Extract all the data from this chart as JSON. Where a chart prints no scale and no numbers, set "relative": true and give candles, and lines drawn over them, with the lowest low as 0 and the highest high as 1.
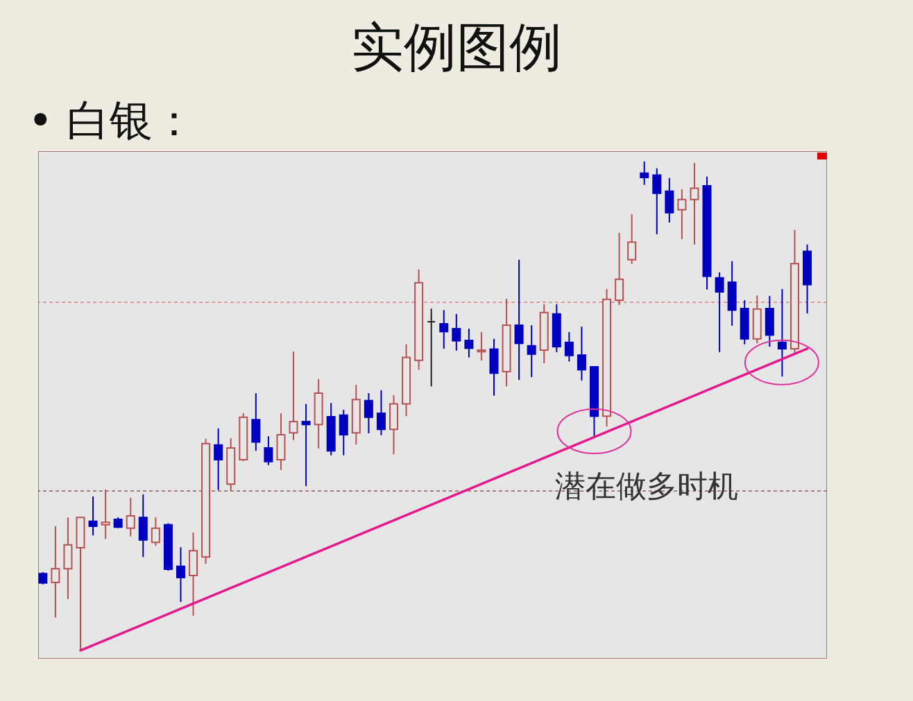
{
  "chart_data": {
    "type": "candlestick",
    "title": "实例图例",
    "subtitle": "• 白银：",
    "relative": true,
    "annotations": [
      "潜在做多时机"
    ],
    "categories": [
      null,
      null,
      null,
      null,
      null,
      null,
      null,
      null,
      null,
      null,
      null,
      null,
      null,
      null,
      null,
      null,
      null,
      null,
      null,
      null,
      null,
      null,
      null,
      null,
      null,
      null,
      null,
      null,
      null,
      null,
      null,
      null,
      null,
      null,
      null,
      null,
      null,
      null,
      null,
      null,
      null,
      null,
      null,
      null,
      null,
      null,
      null,
      null,
      null,
      null,
      null,
      null,
      null,
      null,
      null,
      null,
      null,
      null,
      null,
      null,
      null,
      null
    ],
    "ohlc": [
      [
        0.157,
        0.16,
        0.135,
        0.138
      ],
      [
        0.139,
        0.254,
        0.067,
        0.167
      ],
      [
        0.167,
        0.272,
        0.105,
        0.216
      ],
      [
        0.21,
        0.272,
        0,
        0.272
      ],
      [
        0.264,
        0.315,
        0.235,
        0.254
      ],
      [
        0.257,
        0.329,
        0.228,
        0.262
      ],
      [
        0.268,
        0.272,
        0.25,
        0.252
      ],
      [
        0.25,
        0.312,
        0.233,
        0.275
      ],
      [
        0.272,
        0.319,
        0.191,
        0.226
      ],
      [
        0.221,
        0.272,
        0.214,
        0.25
      ],
      [
        0.257,
        0.26,
        0.163,
        0.166
      ],
      [
        0.172,
        0.211,
        0.099,
        0.149
      ],
      [
        0.153,
        0.241,
        0.071,
        0.204
      ],
      [
        0.191,
        0.433,
        0.177,
        0.423
      ],
      [
        0.42,
        0.454,
        0.328,
        0.39
      ],
      [
        0.34,
        0.434,
        0.326,
        0.414
      ],
      [
        0.39,
        0.485,
        0.387,
        0.477
      ],
      [
        0.472,
        0.526,
        0.408,
        0.426
      ],
      [
        0.414,
        0.438,
        0.379,
        0.386
      ],
      [
        0.39,
        0.485,
        0.369,
        0.441
      ],
      [
        0.445,
        0.611,
        0.43,
        0.468
      ],
      [
        0.468,
        0.504,
        0.336,
        0.462
      ],
      [
        0.462,
        0.555,
        0.413,
        0.526
      ],
      [
        0.478,
        0.506,
        0.399,
        0.408
      ],
      [
        0.481,
        0.492,
        0.399,
        0.441
      ],
      [
        0.445,
        0.543,
        0.421,
        0.513
      ],
      [
        0.511,
        0.526,
        0.444,
        0.477
      ],
      [
        0.485,
        0.532,
        0.44,
        0.452
      ],
      [
        0.452,
        0.522,
        0.401,
        0.504
      ],
      [
        0.504,
        0.626,
        0.479,
        0.599
      ],
      [
        0.593,
        0.779,
        0.574,
        0.752
      ],
      [
        0.672,
        0.699,
        0.54,
        0.672
      ],
      [
        0.668,
        0.696,
        0.617,
        0.652
      ],
      [
        0.658,
        0.688,
        0.613,
        0.633
      ],
      [
        0.634,
        0.658,
        0.599,
        0.618
      ],
      [
        0.611,
        0.651,
        0.593,
        0.614
      ],
      [
        0.616,
        0.637,
        0.521,
        0.567
      ],
      [
        0.57,
        0.719,
        0.54,
        0.665
      ],
      [
        0.665,
        0.799,
        0.553,
        0.628
      ],
      [
        0.623,
        0.665,
        0.559,
        0.606
      ],
      [
        0.614,
        0.708,
        0.587,
        0.691
      ],
      [
        0.688,
        0.708,
        0.61,
        0.621
      ],
      [
        0.63,
        0.651,
        0.591,
        0.603
      ],
      [
        0.604,
        0.662,
        0.552,
        0.574
      ],
      [
        0.58,
        0.58,
        0.437,
        0.479
      ],
      [
        0.479,
        0.739,
        0.458,
        0.718
      ],
      [
        0.716,
        0.854,
        0.706,
        0.759
      ],
      [
        0.799,
        0.892,
        0.79,
        0.835
      ],
      [
        0.976,
        1,
        0.952,
        0.967
      ],
      [
        0.972,
        0.986,
        0.851,
        0.935
      ],
      [
        0.939,
        0.966,
        0.875,
        0.895
      ],
      [
        0.901,
        0.943,
        0.841,
        0.922
      ],
      [
        0.922,
        0.997,
        0.83,
        0.945
      ],
      [
        0.95,
        0.969,
        0.738,
        0.765
      ],
      [
        0.762,
        0.773,
        0.61,
        0.733
      ],
      [
        0.753,
        0.796,
        0.664,
        0.696
      ],
      [
        0.699,
        0.716,
        0.626,
        0.637
      ],
      [
        0.637,
        0.726,
        0.628,
        0.698
      ],
      [
        0.699,
        0.725,
        0.621,
        0.645
      ],
      [
        0.63,
        0.739,
        0.56,
        0.617
      ],
      [
        0.617,
        0.86,
        0.607,
        0.791
      ],
      [
        0.816,
        0.83,
        0.689,
        0.748
      ]
    ],
    "colors": [
      "#0000c0",
      "#b85050",
      "#b85050",
      "#b85050",
      "#0000c0",
      "#b85050",
      "#0000c0",
      "#b85050",
      "#0000c0",
      "#b85050",
      "#0000c0",
      "#0000c0",
      "#b85050",
      "#b85050",
      "#0000c0",
      "#b85050",
      "#b85050",
      "#0000c0",
      "#0000c0",
      "#b85050",
      "#b85050",
      "#0000c0",
      "#b85050",
      "#0000c0",
      "#0000c0",
      "#b85050",
      "#0000c0",
      "#0000c0",
      "#b85050",
      "#b85050",
      "#b85050",
      "#202020",
      "#0000c0",
      "#0000c0",
      "#0000c0",
      "#b85050",
      "#0000c0",
      "#b85050",
      "#0000c0",
      "#0000c0",
      "#b85050",
      "#0000c0",
      "#0000c0",
      "#0000c0",
      "#0000c0",
      "#b85050",
      "#b85050",
      "#b85050",
      "#0000c0",
      "#0000c0",
      "#0000c0",
      "#b85050",
      "#b85050",
      "#0000c0",
      "#0000c0",
      "#0000c0",
      "#0000c0",
      "#b85050",
      "#0000c0",
      "#0000c0",
      "#b85050",
      "#0000c0"
    ],
    "series": [
      {
        "type": "line",
        "color": "#e8168c",
        "values": [
          null,
          null,
          null,
          0,
          null,
          null,
          null,
          null,
          null,
          null,
          null,
          null,
          null,
          null,
          null,
          null,
          null,
          null,
          null,
          null,
          null,
          null,
          null,
          null,
          null,
          null,
          null,
          null,
          null,
          null,
          null,
          null,
          null,
          null,
          null,
          null,
          null,
          null,
          null,
          null,
          null,
          null,
          null,
          null,
          null,
          null,
          null,
          null,
          null,
          null,
          null,
          null,
          null,
          null,
          null,
          null,
          null,
          null,
          null,
          null,
          null,
          0.617
        ]
      }
    ],
    "ref_lines": [
      {
        "axis": "y",
        "value": 0.712,
        "color": "#d07070",
        "line_style": "dashed"
      },
      {
        "axis": "y",
        "value": 0.326,
        "color": "#804040",
        "line_style": "dashed"
      }
    ]
  }
}
